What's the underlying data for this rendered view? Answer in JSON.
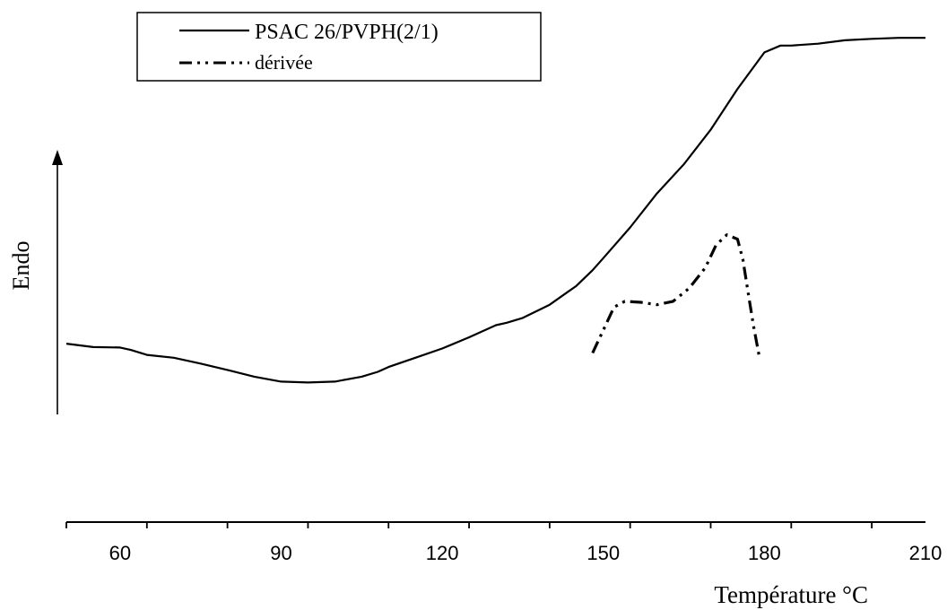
{
  "chart_data": {
    "type": "line",
    "title": "",
    "xlabel": "Température °C",
    "ylabel": "Endo",
    "xlim": [
      50,
      210
    ],
    "ylim": [
      0,
      100
    ],
    "xticks": [
      60,
      90,
      120,
      150,
      180,
      210
    ],
    "grid": false,
    "legend_position": "top-left",
    "series": [
      {
        "name": "PSAC 26/PVPH(2/1)",
        "style": "solid",
        "color": "#000000",
        "points": [
          [
            50,
            36.7
          ],
          [
            55,
            36.0
          ],
          [
            60,
            35.9
          ],
          [
            62,
            35.4
          ],
          [
            65,
            34.4
          ],
          [
            70,
            33.8
          ],
          [
            75,
            32.6
          ],
          [
            80,
            31.3
          ],
          [
            85,
            29.9
          ],
          [
            90,
            28.9
          ],
          [
            95,
            28.7
          ],
          [
            100,
            28.9
          ],
          [
            105,
            29.9
          ],
          [
            108,
            30.9
          ],
          [
            110,
            31.9
          ],
          [
            115,
            33.8
          ],
          [
            120,
            35.7
          ],
          [
            125,
            38.0
          ],
          [
            130,
            40.5
          ],
          [
            132,
            41.0
          ],
          [
            135,
            42.0
          ],
          [
            140,
            44.7
          ],
          [
            145,
            48.6
          ],
          [
            148,
            51.8
          ],
          [
            150,
            54.3
          ],
          [
            155,
            60.6
          ],
          [
            160,
            67.6
          ],
          [
            165,
            73.6
          ],
          [
            170,
            80.7
          ],
          [
            175,
            89.1
          ],
          [
            180,
            96.6
          ],
          [
            183,
            98.0
          ],
          [
            185,
            98.0
          ],
          [
            190,
            98.4
          ],
          [
            195,
            99.1
          ],
          [
            200,
            99.4
          ],
          [
            205,
            99.6
          ],
          [
            210,
            99.6
          ]
        ]
      },
      {
        "name": "dérivée",
        "style": "dash-dot-dot",
        "color": "#000000",
        "points": [
          [
            148,
            34.8
          ],
          [
            150,
            39.5
          ],
          [
            152,
            44.2
          ],
          [
            154,
            45.4
          ],
          [
            157,
            45.2
          ],
          [
            160,
            44.7
          ],
          [
            163,
            45.4
          ],
          [
            166,
            48.1
          ],
          [
            169,
            52.3
          ],
          [
            171,
            57.0
          ],
          [
            173,
            59.1
          ],
          [
            175,
            58.2
          ],
          [
            176,
            54.0
          ],
          [
            177,
            47.0
          ],
          [
            178,
            40.2
          ],
          [
            179,
            34.3
          ]
        ]
      }
    ]
  }
}
